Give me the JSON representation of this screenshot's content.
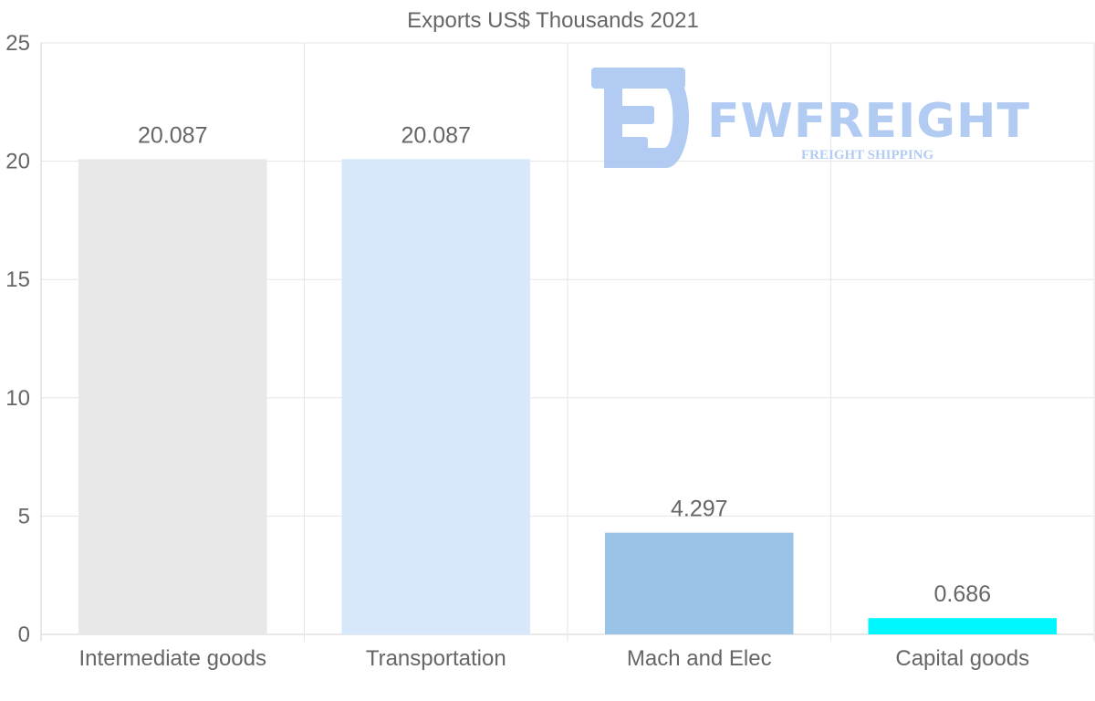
{
  "chart_data": {
    "type": "bar",
    "title": "Exports US$ Thousands 2021",
    "categories": [
      "Intermediate goods",
      "Transportation",
      "Mach and Elec",
      "Capital goods"
    ],
    "values": [
      20.087,
      20.087,
      4.297,
      0.686
    ],
    "value_labels": [
      "20.087",
      "20.087",
      "4.297",
      "0.686"
    ],
    "colors": [
      "#e8e8e8",
      "#d6e8f9",
      "#9ac4e7",
      "#00f7ff"
    ],
    "ylim": [
      0,
      25
    ],
    "yticks": [
      0,
      5,
      10,
      15,
      20,
      25
    ],
    "xlabel": "",
    "ylabel": "",
    "grid": true,
    "legend": "none"
  },
  "watermark": {
    "brand": "FWFREIGHT",
    "tagline": "FREIGHT SHIPPING",
    "color": "#aac6f2"
  }
}
